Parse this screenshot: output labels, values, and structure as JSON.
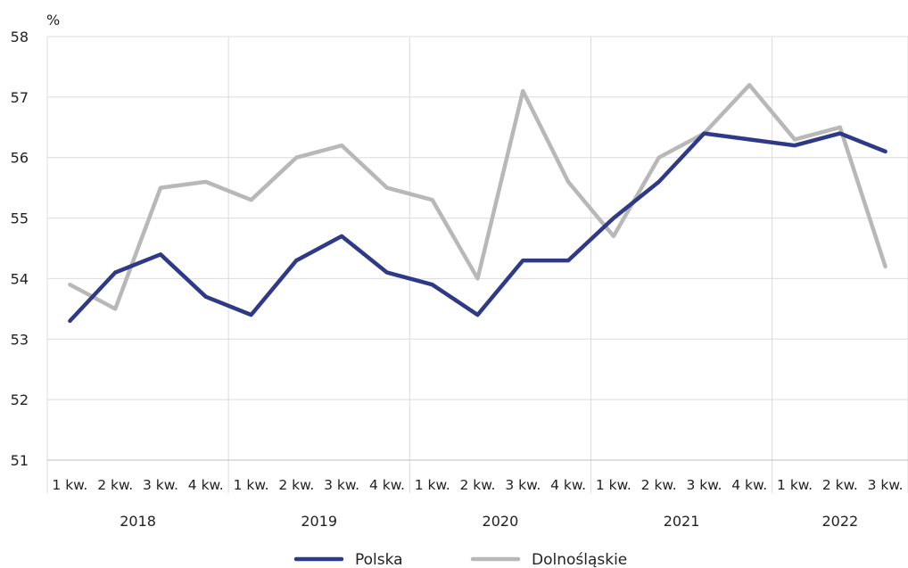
{
  "chart_data": {
    "type": "line",
    "unit_label": "%",
    "ylim": [
      51,
      58
    ],
    "yticks": [
      51,
      52,
      53,
      54,
      55,
      56,
      57,
      58
    ],
    "categories": [
      "1 kw.",
      "2 kw.",
      "3 kw.",
      "4 kw.",
      "1 kw.",
      "2 kw.",
      "3 kw.",
      "4 kw.",
      "1 kw.",
      "2 kw.",
      "3 kw.",
      "4 kw.",
      "1 kw.",
      "2 kw.",
      "3 kw.",
      "4 kw.",
      "1 kw.",
      "2 kw.",
      "3 kw."
    ],
    "years": [
      "2018",
      "2019",
      "2020",
      "2021",
      "2022"
    ],
    "series": [
      {
        "name": "Polska",
        "color": "#2e3a87",
        "values": [
          53.3,
          54.1,
          54.4,
          53.7,
          53.4,
          54.3,
          54.7,
          54.1,
          53.9,
          53.4,
          54.3,
          54.3,
          55.0,
          55.6,
          56.4,
          56.3,
          56.2,
          56.4,
          56.1
        ]
      },
      {
        "name": "Dolnośląskie",
        "color": "#b8b8b8",
        "values": [
          53.9,
          53.5,
          55.5,
          55.6,
          55.3,
          56.0,
          56.2,
          55.5,
          55.3,
          54.0,
          57.1,
          55.6,
          54.7,
          56.0,
          56.4,
          57.2,
          56.3,
          56.5,
          54.2
        ]
      }
    ],
    "grid": true,
    "legend": "bottom-center"
  }
}
